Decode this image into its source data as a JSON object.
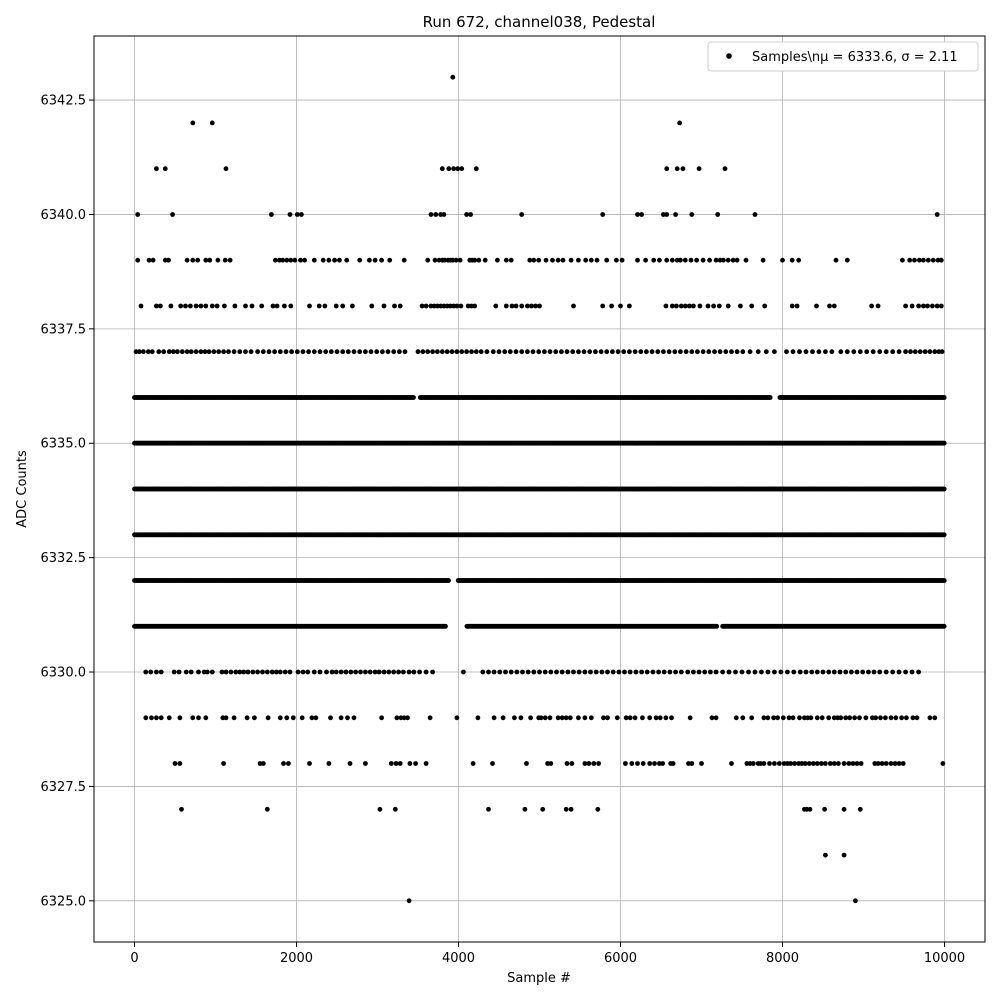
{
  "chart_data": {
    "type": "scatter",
    "title": "Run 672, channel038, Pedestal",
    "xlabel": "Sample #",
    "ylabel": "ADC Counts",
    "xlim": [
      -500,
      10500
    ],
    "ylim": [
      6324.1,
      6343.9
    ],
    "grid": true,
    "legend_position": "top-right",
    "legend_label": "Samples\\nμ = 6333.6, σ = 2.11",
    "marker_color": "#000000",
    "x_ticks": [
      {
        "value": 0,
        "label": "0"
      },
      {
        "value": 2000,
        "label": "2000"
      },
      {
        "value": 4000,
        "label": "4000"
      },
      {
        "value": 6000,
        "label": "6000"
      },
      {
        "value": 8000,
        "label": "8000"
      },
      {
        "value": 10000,
        "label": "10000"
      }
    ],
    "y_ticks": [
      {
        "value": 6325.0,
        "label": "6325.0"
      },
      {
        "value": 6327.5,
        "label": "6327.5"
      },
      {
        "value": 6330.0,
        "label": "6330.0"
      },
      {
        "value": 6332.5,
        "label": "6332.5"
      },
      {
        "value": 6335.0,
        "label": "6335.0"
      },
      {
        "value": 6337.5,
        "label": "6337.5"
      },
      {
        "value": 6340.0,
        "label": "6340.0"
      },
      {
        "value": 6342.5,
        "label": "6342.5"
      }
    ],
    "series": [
      {
        "name": "Samples",
        "bands": [
          {
            "y": 6343,
            "x": [
              3930
            ]
          },
          {
            "y": 6342,
            "x": [
              720,
              960,
              6730
            ]
          },
          {
            "y": 6341,
            "x": [
              270,
              380,
              1130,
              3800,
              3880,
              3940,
              3990,
              4040,
              4220,
              6570,
              6700,
              6770,
              6970,
              7290
            ]
          },
          {
            "y": 6340,
            "x": [
              40,
              470,
              1690,
              1920,
              2010,
              2060,
              3660,
              3720,
              3780,
              3820,
              4100,
              4150,
              4780,
              5780,
              6210,
              6260,
              6530,
              6570,
              6680,
              6880,
              7200,
              7660,
              9910
            ]
          },
          {
            "y": 6339,
            "x": [
              40,
              180,
              230,
              380,
              420,
              650,
              720,
              780,
              880,
              930,
              1030,
              1120,
              1180,
              1740,
              1790,
              1830,
              1880,
              1930,
              1980,
              2050,
              2100,
              2220,
              2330,
              2400,
              2470,
              2530,
              2620,
              2780,
              2900,
              2970,
              3050,
              3150,
              3330,
              3620,
              3710,
              3760,
              3800,
              3830,
              3870,
              3900,
              3930,
              3970,
              4020,
              4140,
              4170,
              4200,
              4250,
              4330,
              4480,
              4590,
              4650,
              4880,
              4930,
              4990,
              5080,
              5160,
              5230,
              5290,
              5390,
              5480,
              5570,
              5640,
              5710,
              5830,
              5950,
              6020,
              6210,
              6310,
              6410,
              6480,
              6570,
              6640,
              6700,
              6740,
              6800,
              6870,
              6940,
              7020,
              7100,
              7180,
              7230,
              7270,
              7330,
              7390,
              7440,
              7550,
              7760,
              8000,
              8120,
              8200,
              8660,
              8800,
              9480,
              9570,
              9630,
              9690,
              9740,
              9800,
              9860,
              9920,
              9960
            ]
          },
          {
            "y": 6338,
            "x": [
              80,
              270,
              320,
              450,
              570,
              630,
              690,
              760,
              820,
              880,
              960,
              1020,
              1110,
              1240,
              1370,
              1450,
              1570,
              1710,
              1760,
              1850,
              1930,
              2160,
              2280,
              2350,
              2490,
              2570,
              2690,
              2930,
              3080,
              3210,
              3280,
              3550,
              3600,
              3660,
              3700,
              3740,
              3780,
              3820,
              3860,
              3900,
              3940,
              3980,
              4030,
              4120,
              4160,
              4200,
              4460,
              4590,
              4660,
              4710,
              4780,
              4850,
              4900,
              4950,
              5000,
              5420,
              5780,
              5890,
              6000,
              6110,
              6560,
              6640,
              6690,
              6750,
              6800,
              6850,
              6900,
              6980,
              7080,
              7150,
              7220,
              7330,
              7480,
              7620,
              7780,
              8120,
              8180,
              8420,
              8580,
              8640,
              9100,
              9180,
              9520,
              9600,
              9680,
              9740,
              9790,
              9850,
              9910,
              9960
            ]
          },
          {
            "y": 6337,
            "x": [
              20,
              60,
              110,
              170,
              220,
              300,
              360,
              430,
              480,
              530,
              590,
              650,
              700,
              760,
              820,
              870,
              920,
              980,
              1040,
              1100,
              1160,
              1230,
              1300,
              1370,
              1440,
              1520,
              1590,
              1660,
              1730,
              1800,
              1870,
              1940,
              2010,
              2080,
              2150,
              2220,
              2290,
              2360,
              2430,
              2500,
              2570,
              2640,
              2710,
              2780,
              2850,
              2920,
              2990,
              3060,
              3130,
              3200,
              3270,
              3340,
              3500,
              3560,
              3620,
              3680,
              3740,
              3800,
              3860,
              3920,
              3980,
              4040,
              4100,
              4160,
              4220,
              4280,
              4350,
              4430,
              4500,
              4570,
              4640,
              4710,
              4780,
              4850,
              4920,
              4990,
              5060,
              5130,
              5200,
              5270,
              5340,
              5410,
              5480,
              5550,
              5620,
              5690,
              5760,
              5830,
              5900,
              5970,
              6040,
              6110,
              6180,
              6250,
              6320,
              6390,
              6460,
              6530,
              6600,
              6670,
              6740,
              6810,
              6880,
              6950,
              7020,
              7090,
              7160,
              7230,
              7300,
              7370,
              7440,
              7510,
              7600,
              7700,
              7800,
              7900,
              8050,
              8130,
              8210,
              8290,
              8370,
              8450,
              8530,
              8610,
              8720,
              8800,
              8880,
              8960,
              9040,
              9120,
              9200,
              9280,
              9360,
              9440,
              9520,
              9580,
              9640,
              9700,
              9760,
              9820,
              9880,
              9930,
              9970
            ]
          }
        ],
        "dense_rows": [
          {
            "y": 6336,
            "x_start": 0,
            "x_end": 10000,
            "gaps": [
              [
                3450,
                3520
              ],
              [
                7860,
                7960
              ]
            ]
          },
          {
            "y": 6335,
            "x_start": 0,
            "x_end": 10000,
            "gaps": []
          },
          {
            "y": 6334,
            "x_start": 0,
            "x_end": 10000,
            "gaps": []
          },
          {
            "y": 6333,
            "x_start": 0,
            "x_end": 10000,
            "gaps": []
          },
          {
            "y": 6332,
            "x_start": 0,
            "x_end": 10000,
            "gaps": [
              [
                3880,
                3990
              ]
            ]
          },
          {
            "y": 6331,
            "x_start": 0,
            "x_end": 10000,
            "gaps": [
              [
                3850,
                4100
              ],
              [
                7200,
                7250
              ]
            ]
          }
        ],
        "sparse_rows": [
          {
            "y": 6330,
            "x": [
              140,
              200,
              270,
              330,
              490,
              550,
              640,
              700,
              790,
              860,
              900,
              960,
              1080,
              1130,
              1190,
              1250,
              1300,
              1350,
              1400,
              1460,
              1520,
              1580,
              1640,
              1700,
              1750,
              1800,
              1860,
              1920,
              2020,
              2080,
              2140,
              2220,
              2290,
              2370,
              2440,
              2490,
              2550,
              2610,
              2670,
              2730,
              2790,
              2850,
              2910,
              2970,
              3020,
              3080,
              3140,
              3200,
              3260,
              3320,
              3390,
              3450,
              3520,
              3600,
              3680,
              4060,
              4300,
              4370,
              4440,
              4510,
              4580,
              4650,
              4720,
              4790,
              4860,
              4930,
              5000,
              5070,
              5140,
              5210,
              5280,
              5350,
              5420,
              5490,
              5560,
              5630,
              5700,
              5770,
              5840,
              5910,
              5980,
              6050,
              6120,
              6190,
              6260,
              6330,
              6400,
              6470,
              6540,
              6610,
              6680,
              6750,
              6830,
              6900,
              6970,
              7040,
              7110,
              7180,
              7260,
              7340,
              7420,
              7500,
              7580,
              7660,
              7740,
              7820,
              7900,
              7980,
              8060,
              8140,
              8220,
              8290,
              8360,
              8430,
              8500,
              8570,
              8640,
              8710,
              8780,
              8850,
              8920,
              8990,
              9060,
              9130,
              9200,
              9280,
              9360,
              9440,
              9520,
              9600,
              9680
            ]
          },
          {
            "y": 6329,
            "x": [
              140,
              210,
              270,
              330,
              430,
              560,
              720,
              790,
              880,
              1090,
              1130,
              1230,
              1390,
              1480,
              1650,
              1800,
              1880,
              1960,
              2070,
              2190,
              2240,
              2420,
              2550,
              2630,
              2710,
              3050,
              3240,
              3290,
              3330,
              3370,
              3650,
              3980,
              4240,
              4440,
              4550,
              4690,
              4770,
              4890,
              4990,
              5020,
              5070,
              5130,
              5230,
              5280,
              5330,
              5380,
              5480,
              5560,
              5640,
              5790,
              5840,
              5960,
              6070,
              6120,
              6180,
              6270,
              6360,
              6440,
              6490,
              6560,
              6630,
              6860,
              7130,
              7180,
              7430,
              7510,
              7620,
              7770,
              7820,
              7890,
              7940,
              8010,
              8080,
              8130,
              8210,
              8270,
              8310,
              8350,
              8430,
              8490,
              8570,
              8640,
              8680,
              8720,
              8780,
              8830,
              8890,
              8950,
              9030,
              9110,
              9150,
              9210,
              9270,
              9340,
              9400,
              9470,
              9530,
              9610,
              9660,
              9820,
              9880
            ]
          },
          {
            "y": 6328,
            "x": [
              500,
              560,
              1100,
              1550,
              1590,
              1840,
              1900,
              2160,
              2400,
              2660,
              2850,
              3170,
              3230,
              3280,
              3400,
              3470,
              3600,
              4180,
              4420,
              4840,
              5100,
              5140,
              5340,
              5400,
              5560,
              5610,
              5670,
              5730,
              6060,
              6140,
              6210,
              6280,
              6360,
              6420,
              6480,
              6520,
              6620,
              6650,
              6840,
              6880,
              7000,
              7370,
              7560,
              7600,
              7640,
              7700,
              7730,
              7770,
              7840,
              7900,
              7960,
              8020,
              8060,
              8100,
              8150,
              8200,
              8240,
              8280,
              8330,
              8380,
              8430,
              8480,
              8530,
              8590,
              8640,
              8690,
              8760,
              8820,
              8870,
              8920,
              8970,
              9140,
              9180,
              9230,
              9280,
              9340,
              9390,
              9440,
              9490,
              9980
            ]
          },
          {
            "y": 6327,
            "x": [
              580,
              1640,
              3030,
              3220,
              4370,
              4820,
              5040,
              5330,
              5390,
              5720,
              8270,
              8300,
              8340,
              8520,
              8760,
              8960
            ]
          },
          {
            "y": 6326,
            "x": [
              8530,
              8760
            ]
          },
          {
            "y": 6325,
            "x": [
              3390,
              8900
            ]
          }
        ]
      }
    ]
  }
}
